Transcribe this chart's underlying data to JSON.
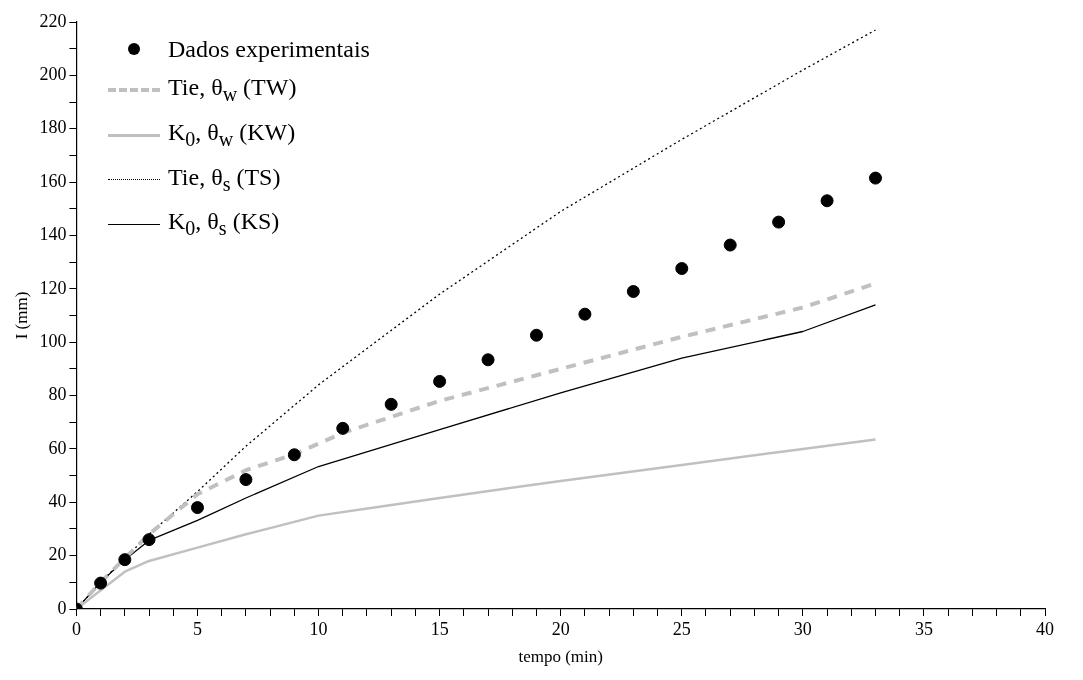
{
  "chart_data": {
    "type": "line",
    "xlabel": "tempo (min)",
    "ylabel": "I (mm)",
    "xlim": [
      0,
      40
    ],
    "ylim": [
      0,
      220
    ],
    "xticks": [
      0,
      {
        "value": 1,
        "label": null
      },
      {
        "value": 2,
        "label": null
      },
      {
        "value": 3,
        "label": null
      },
      {
        "value": 4,
        "label": null
      },
      5,
      {
        "value": 6,
        "label": null
      },
      {
        "value": 7,
        "label": null
      },
      {
        "value": 8,
        "label": null
      },
      {
        "value": 9,
        "label": null
      },
      10,
      {
        "value": 11,
        "label": null
      },
      {
        "value": 12,
        "label": null
      },
      {
        "value": 13,
        "label": null
      },
      {
        "value": 14,
        "label": null
      },
      15,
      {
        "value": 16,
        "label": null
      },
      {
        "value": 17,
        "label": null
      },
      {
        "value": 18,
        "label": null
      },
      {
        "value": 19,
        "label": null
      },
      20,
      {
        "value": 21,
        "label": null
      },
      {
        "value": 22,
        "label": null
      },
      {
        "value": 23,
        "label": null
      },
      {
        "value": 24,
        "label": null
      },
      25,
      {
        "value": 26,
        "label": null
      },
      {
        "value": 27,
        "label": null
      },
      {
        "value": 28,
        "label": null
      },
      {
        "value": 29,
        "label": null
      },
      30,
      {
        "value": 31,
        "label": null
      },
      {
        "value": 32,
        "label": null
      },
      {
        "value": 33,
        "label": null
      },
      {
        "value": 34,
        "label": null
      },
      35,
      {
        "value": 36,
        "label": null
      },
      {
        "value": 37,
        "label": null
      },
      {
        "value": 38,
        "label": null
      },
      {
        "value": 39,
        "label": null
      },
      40
    ],
    "yticks": [
      0,
      {
        "value": 10,
        "label": null
      },
      20,
      {
        "value": 30,
        "label": null
      },
      40,
      {
        "value": 50,
        "label": null
      },
      60,
      {
        "value": 70,
        "label": null
      },
      80,
      {
        "value": 90,
        "label": null
      },
      100,
      {
        "value": 110,
        "label": null
      },
      120,
      {
        "value": 130,
        "label": null
      },
      140,
      {
        "value": 150,
        "label": null
      },
      160,
      {
        "value": 170,
        "label": null
      },
      180,
      {
        "value": 190,
        "label": null
      },
      200,
      {
        "value": 210,
        "label": null
      },
      220
    ],
    "grid": false,
    "legend": "top left",
    "series": [
      {
        "name": "Dados experimentais",
        "type": "scatter",
        "marker": "circle",
        "color": "#000000",
        "x": [
          0,
          1,
          2,
          3,
          5,
          7,
          9,
          11,
          13,
          15,
          17,
          19,
          21,
          23,
          25,
          27,
          29,
          31,
          33
        ],
        "values": [
          0,
          9.7,
          18.5,
          26,
          38,
          48.5,
          57.8,
          67.7,
          76.7,
          85.3,
          93.4,
          102.6,
          110.5,
          119,
          127.6,
          136.4,
          145,
          153,
          161.5
        ]
      },
      {
        "name": "Tie, θ$_{w}$ (TW)",
        "type": "line",
        "line_style": "dashed",
        "color": "#c0c0c0",
        "x": [
          0,
          1,
          2,
          3,
          5,
          7,
          9,
          11,
          15,
          20,
          25,
          30,
          33
        ],
        "values": [
          0,
          10,
          19,
          28,
          43,
          52,
          58,
          66,
          78,
          90,
          102,
          113,
          122
        ]
      },
      {
        "name": "K$_{0}$, θ$_{w}$ (KW)",
        "type": "line",
        "line_style": "solid",
        "color": "#c0c0c0",
        "x": [
          0,
          1,
          2,
          3,
          5,
          7,
          10,
          15,
          20,
          25,
          30,
          33
        ],
        "values": [
          0,
          null,
          14,
          18,
          23,
          28,
          35,
          41.6,
          48,
          54,
          60,
          63.5
        ]
      },
      {
        "name": "Tie, θ$_{s}$ (TS)",
        "type": "line",
        "line_style": "dotted",
        "color": "#000000",
        "x": [
          0,
          1,
          2,
          3,
          5,
          7,
          10,
          15,
          20,
          25,
          30,
          33
        ],
        "values": [
          0,
          10,
          19,
          28,
          44,
          61,
          84,
          118,
          149,
          176,
          202,
          217
        ]
      },
      {
        "name": "K$_{0}$, θ$_{s}$ (KS)",
        "type": "line",
        "line_style": "solid",
        "color": "#000000",
        "x": [
          0,
          1,
          2,
          3,
          5,
          7,
          10,
          15,
          20,
          25,
          30,
          33
        ],
        "values": [
          0,
          10,
          18.5,
          25.7,
          33.2,
          41.6,
          53.4,
          67.2,
          81,
          94,
          104,
          114
        ]
      }
    ]
  }
}
